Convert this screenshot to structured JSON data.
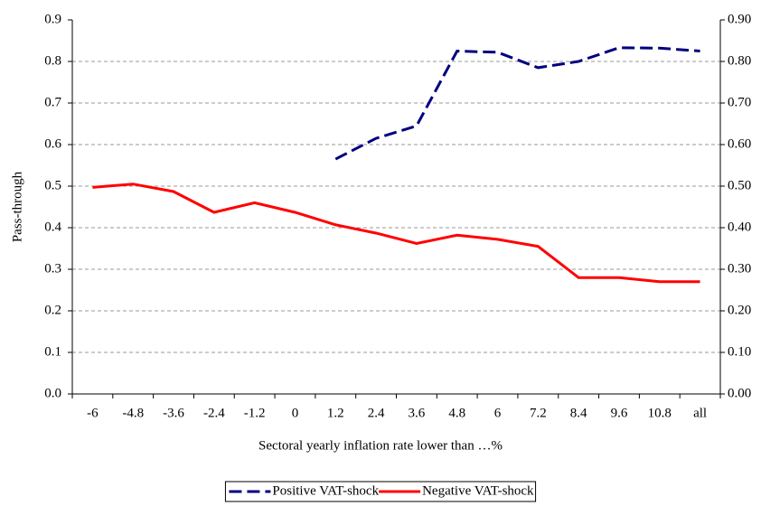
{
  "chart_data": {
    "type": "line",
    "x_label": "Sectoral yearly inflation rate lower than …%",
    "y_label": "Pass-through",
    "categories": [
      "-6",
      "-4.8",
      "-3.6",
      "-2.4",
      "-1.2",
      "0",
      "1.2",
      "2.4",
      "3.6",
      "4.8",
      "6",
      "7.2",
      "8.4",
      "9.6",
      "10.8",
      "all"
    ],
    "series": [
      {
        "name": "Positive VAT-shock",
        "color": "#000080",
        "dashed": true,
        "values": [
          null,
          null,
          null,
          null,
          null,
          null,
          0.565,
          0.615,
          0.645,
          0.825,
          0.822,
          0.785,
          0.8,
          0.833,
          0.832,
          0.825
        ]
      },
      {
        "name": "Negative VAT-shock",
        "color": "#ff0000",
        "dashed": false,
        "values": [
          0.497,
          0.505,
          0.487,
          0.437,
          0.46,
          0.437,
          0.407,
          0.387,
          0.362,
          0.382,
          0.372,
          0.355,
          0.28,
          0.28,
          0.27,
          0.27
        ]
      }
    ],
    "ylim": [
      0,
      0.9
    ],
    "yticks": [
      {
        "value": 0,
        "label": "0.0"
      },
      0.1,
      0.2,
      0.3,
      0.4,
      0.5,
      0.6,
      0.7,
      0.8,
      0.9
    ],
    "y2lim": [
      0,
      0.9
    ],
    "y2ticks": [
      {
        "value": 0,
        "label": "0.00"
      },
      {
        "value": 0.1,
        "label": "0.10"
      },
      {
        "value": 0.2,
        "label": "0.20"
      },
      {
        "value": 0.3,
        "label": "0.30"
      },
      {
        "value": 0.4,
        "label": "0.40"
      },
      {
        "value": 0.5,
        "label": "0.50"
      },
      {
        "value": 0.6,
        "label": "0.60"
      },
      {
        "value": 0.7,
        "label": "0.70"
      },
      {
        "value": 0.8,
        "label": "0.80"
      },
      {
        "value": 0.9,
        "label": "0.90"
      }
    ],
    "grid": true,
    "legend": "bottom"
  }
}
